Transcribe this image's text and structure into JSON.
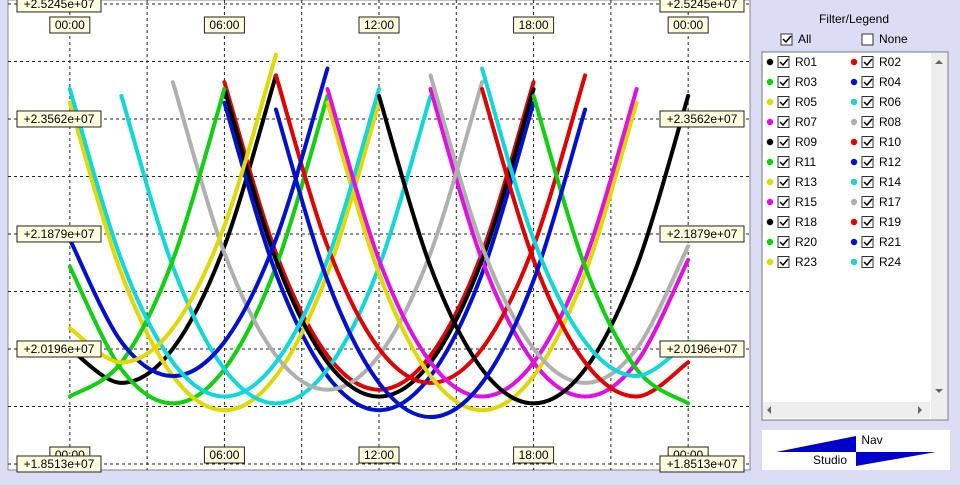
{
  "chart_data": {
    "type": "line",
    "x": [
      0,
      2,
      4,
      6,
      8,
      10,
      12,
      14,
      16,
      18,
      20,
      22,
      24
    ],
    "xlim": [
      -2.4,
      26.4
    ],
    "xticks": [
      {
        "value": 0,
        "label": "00:00"
      },
      {
        "value": 6,
        "label": "06:00"
      },
      {
        "value": 12,
        "label": "12:00"
      },
      {
        "value": 18,
        "label": "18:00"
      },
      {
        "value": 24,
        "label": "00:00"
      }
    ],
    "xticks_minor": [
      3,
      9,
      15,
      21
    ],
    "ylim": [
      18425000,
      25303000
    ],
    "yticks": [
      {
        "value": 18513000,
        "label": "+1.8513e+07"
      },
      {
        "value": 20196000,
        "label": "+2.0196e+07"
      },
      {
        "value": 21879000,
        "label": "+2.1879e+07"
      },
      {
        "value": 23562000,
        "label": "+2.3562e+07"
      },
      {
        "value": 25245000,
        "label": "+2.5245e+07"
      }
    ],
    "yticks_minor": [
      19354500,
      21037500,
      22720500,
      24403500
    ],
    "grid": true,
    "series": [
      {
        "name": "R01",
        "color": "#000000",
        "values": [
          20200000.0,
          19700000.0,
          20200000.0,
          21700000.0,
          24200000.0,
          null,
          null,
          null,
          null,
          null,
          null,
          null,
          null
        ]
      },
      {
        "name": "R02",
        "color": "#e00000",
        "values": [
          null,
          null,
          null,
          24100000.0,
          21600000.0,
          20100000.0,
          19600000.0,
          20100000.0,
          21600000.0,
          24100000.0,
          null,
          null,
          null
        ]
      },
      {
        "name": "R03",
        "color": "#10d010",
        "values": [
          21400000.0,
          19900000.0,
          19400000.0,
          19900000.0,
          21400000.0,
          23900000.0,
          null,
          null,
          null,
          null,
          null,
          null,
          null
        ]
      },
      {
        "name": "R04",
        "color": "#0010d0",
        "values": [
          null,
          null,
          null,
          23800000.0,
          21300000.0,
          19800000.0,
          19300000.0,
          19800000.0,
          21300000.0,
          23800000.0,
          null,
          null,
          null
        ]
      },
      {
        "name": "R05",
        "color": "#e0d800",
        "values": [
          23800000.0,
          21300000.0,
          19800000.0,
          19300000.0,
          19800000.0,
          21300000.0,
          23800000.0,
          null,
          null,
          null,
          null,
          null,
          null
        ]
      },
      {
        "name": "R06",
        "color": "#10d8d8",
        "values": [
          null,
          23900000.0,
          21400000.0,
          19900000.0,
          19400000.0,
          19900000.0,
          21400000.0,
          23900000.0,
          null,
          null,
          null,
          null,
          null
        ]
      },
      {
        "name": "R07",
        "color": "#e010e0",
        "values": [
          null,
          null,
          null,
          null,
          null,
          null,
          null,
          24000000.0,
          21500000.0,
          20000000.0,
          19500000.0,
          20000000.0,
          21500000.0
        ]
      },
      {
        "name": "R08",
        "color": "#b0b0b0",
        "values": [
          null,
          null,
          24100000.0,
          21600000.0,
          20100000.0,
          19600000.0,
          20100000.0,
          21600000.0,
          24100000.0,
          null,
          null,
          null,
          null
        ]
      },
      {
        "name": "R09",
        "color": "#000000",
        "values": [
          null,
          null,
          null,
          24000000.0,
          21500000.0,
          20000000.0,
          19500000.0,
          20000000.0,
          21500000.0,
          24000000.0,
          null,
          null,
          null
        ]
      },
      {
        "name": "R10",
        "color": "#e00000",
        "values": [
          null,
          null,
          null,
          null,
          24200000.0,
          21700000.0,
          20200000.0,
          19700000.0,
          20200000.0,
          21700000.0,
          24200000.0,
          null,
          null
        ]
      },
      {
        "name": "R11",
        "color": "#10d010",
        "values": [
          19500000.0,
          20000000.0,
          21500000.0,
          24000000.0,
          null,
          null,
          null,
          null,
          null,
          null,
          null,
          null,
          null
        ]
      },
      {
        "name": "R12",
        "color": "#0010d0",
        "values": [
          21800000.0,
          20300000.0,
          19800000.0,
          20300000.0,
          21800000.0,
          24300000.0,
          null,
          null,
          null,
          null,
          null,
          null,
          null
        ]
      },
      {
        "name": "R13",
        "color": "#e0d800",
        "values": [
          null,
          null,
          null,
          null,
          null,
          23800000.0,
          21300000.0,
          19800000.0,
          19300000.0,
          19800000.0,
          21300000.0,
          23800000.0,
          null
        ]
      },
      {
        "name": "R14",
        "color": "#10d8d8",
        "values": [
          24000000.0,
          21500000.0,
          20000000.0,
          19500000.0,
          20000000.0,
          21500000.0,
          24000000.0,
          null,
          null,
          null,
          null,
          null,
          null
        ]
      },
      {
        "name": "R15",
        "color": "#e010e0",
        "values": [
          null,
          null,
          null,
          null,
          null,
          24000000.0,
          21500000.0,
          20000000.0,
          19500000.0,
          20000000.0,
          21500000.0,
          24000000.0,
          null
        ]
      },
      {
        "name": "R17",
        "color": "#b0b0b0",
        "values": [
          null,
          null,
          null,
          null,
          null,
          null,
          null,
          24200000.0,
          21700000.0,
          20200000.0,
          19700000.0,
          20200000.0,
          21700000.0
        ]
      },
      {
        "name": "R18",
        "color": "#000000",
        "values": [
          null,
          null,
          null,
          null,
          null,
          null,
          23900000.0,
          21400000.0,
          19900000.0,
          19400000.0,
          19900000.0,
          21400000.0,
          23900000.0
        ]
      },
      {
        "name": "R19",
        "color": "#e00000",
        "values": [
          null,
          null,
          null,
          null,
          null,
          null,
          null,
          null,
          24000000.0,
          21500000.0,
          20000000.0,
          19500000.0,
          20000000.0
        ]
      },
      {
        "name": "R20",
        "color": "#10d010",
        "values": [
          null,
          null,
          null,
          null,
          null,
          null,
          null,
          null,
          null,
          23900000.0,
          21400000.0,
          19900000.0,
          19400000.0
        ]
      },
      {
        "name": "R21",
        "color": "#0010d0",
        "values": [
          null,
          null,
          null,
          null,
          23700000.0,
          21200000.0,
          19700000.0,
          19200000.0,
          19700000.0,
          21200000.0,
          23700000.0,
          null,
          null
        ]
      },
      {
        "name": "R23",
        "color": "#e0d800",
        "values": [
          20500000.0,
          20000000.0,
          20500000.0,
          22000000.0,
          24500000.0,
          null,
          null,
          null,
          null,
          null,
          null,
          null,
          null
        ]
      },
      {
        "name": "R24",
        "color": "#10d8d8",
        "values": [
          null,
          null,
          null,
          null,
          null,
          null,
          null,
          null,
          24300000.0,
          21800000.0,
          20300000.0,
          19800000.0,
          20300000.0
        ]
      }
    ]
  },
  "panel": {
    "title": "Filter/Legend",
    "all": "All",
    "none": "None",
    "nav_top": "Nav",
    "nav_bottom": "Studio"
  }
}
